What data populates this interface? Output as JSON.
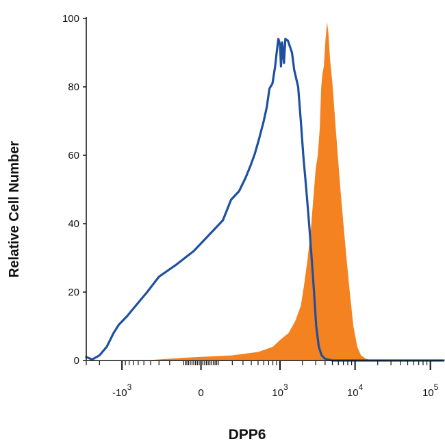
{
  "chart_data": {
    "type": "area",
    "title": "",
    "xlabel": "DPP6",
    "ylabel": "Relative Cell Number",
    "x_scale": "biexponential",
    "xlim": [
      -3000,
      150000
    ],
    "ylim": [
      0,
      100
    ],
    "y_ticks": [
      {
        "value": 0,
        "label": "0"
      },
      {
        "value": 20,
        "label": "20"
      },
      {
        "value": 40,
        "label": "40"
      },
      {
        "value": 60,
        "label": "60"
      },
      {
        "value": 80,
        "label": "80"
      },
      {
        "value": 100,
        "label": "100"
      }
    ],
    "x_ticks": [
      {
        "value": -1000,
        "base": "-10",
        "exp": "3"
      },
      {
        "value": 0,
        "base": "0",
        "exp": ""
      },
      {
        "value": 1000,
        "base": "10",
        "exp": "3"
      },
      {
        "value": 10000,
        "base": "10",
        "exp": "4"
      },
      {
        "value": 100000,
        "base": "10",
        "exp": "5"
      }
    ],
    "grid": false,
    "legend": "none",
    "series": [
      {
        "style": "outline",
        "color": "#1f4fa0",
        "points": [
          [
            -3000,
            1
          ],
          [
            -2500,
            0.3
          ],
          [
            -2000,
            1.5
          ],
          [
            -1600,
            4
          ],
          [
            -1300,
            8
          ],
          [
            -1100,
            10.5
          ],
          [
            -850,
            13
          ],
          [
            -650,
            16
          ],
          [
            -450,
            20
          ],
          [
            -300,
            24.5
          ],
          [
            -150,
            28
          ],
          [
            -40,
            32
          ],
          [
            50,
            37
          ],
          [
            130,
            41
          ],
          [
            190,
            47
          ],
          [
            260,
            49.5
          ],
          [
            330,
            53.5
          ],
          [
            390,
            57
          ],
          [
            450,
            60.5
          ],
          [
            520,
            65
          ],
          [
            600,
            70
          ],
          [
            660,
            74
          ],
          [
            720,
            79.5
          ],
          [
            790,
            81
          ],
          [
            860,
            86
          ],
          [
            900,
            90
          ],
          [
            950,
            94
          ],
          [
            1000,
            92.5
          ],
          [
            1030,
            86
          ],
          [
            1070,
            93
          ],
          [
            1130,
            87
          ],
          [
            1180,
            94
          ],
          [
            1280,
            93.5
          ],
          [
            1450,
            90
          ],
          [
            1550,
            85
          ],
          [
            1750,
            80
          ],
          [
            1900,
            70
          ],
          [
            2050,
            60
          ],
          [
            2250,
            50
          ],
          [
            2450,
            40
          ],
          [
            2650,
            30
          ],
          [
            2850,
            20
          ],
          [
            3050,
            10
          ],
          [
            3300,
            4
          ],
          [
            3600,
            1.5
          ],
          [
            4000,
            0.5
          ],
          [
            5000,
            0
          ],
          [
            150000,
            0
          ]
        ]
      },
      {
        "style": "filled",
        "color": "#f58220",
        "points": [
          [
            -3000,
            0
          ],
          [
            -500,
            0
          ],
          [
            -100,
            0.8
          ],
          [
            200,
            1.5
          ],
          [
            500,
            2.5
          ],
          [
            800,
            4
          ],
          [
            1000,
            6
          ],
          [
            1300,
            8
          ],
          [
            1600,
            11.5
          ],
          [
            1900,
            16
          ],
          [
            2100,
            22
          ],
          [
            2350,
            30
          ],
          [
            2600,
            39
          ],
          [
            2800,
            48
          ],
          [
            3000,
            56
          ],
          [
            3200,
            60
          ],
          [
            3400,
            68
          ],
          [
            3550,
            80
          ],
          [
            3700,
            84
          ],
          [
            3850,
            86
          ],
          [
            4050,
            94
          ],
          [
            4250,
            99
          ],
          [
            4450,
            95
          ],
          [
            4650,
            88
          ],
          [
            4850,
            84
          ],
          [
            5050,
            80
          ],
          [
            5450,
            70
          ],
          [
            5900,
            60
          ],
          [
            6400,
            50
          ],
          [
            7000,
            40
          ],
          [
            7700,
            30
          ],
          [
            8500,
            20
          ],
          [
            9500,
            10
          ],
          [
            10700,
            4
          ],
          [
            12000,
            1.5
          ],
          [
            14000,
            0.5
          ],
          [
            17000,
            0
          ],
          [
            150000,
            0
          ]
        ]
      }
    ]
  }
}
